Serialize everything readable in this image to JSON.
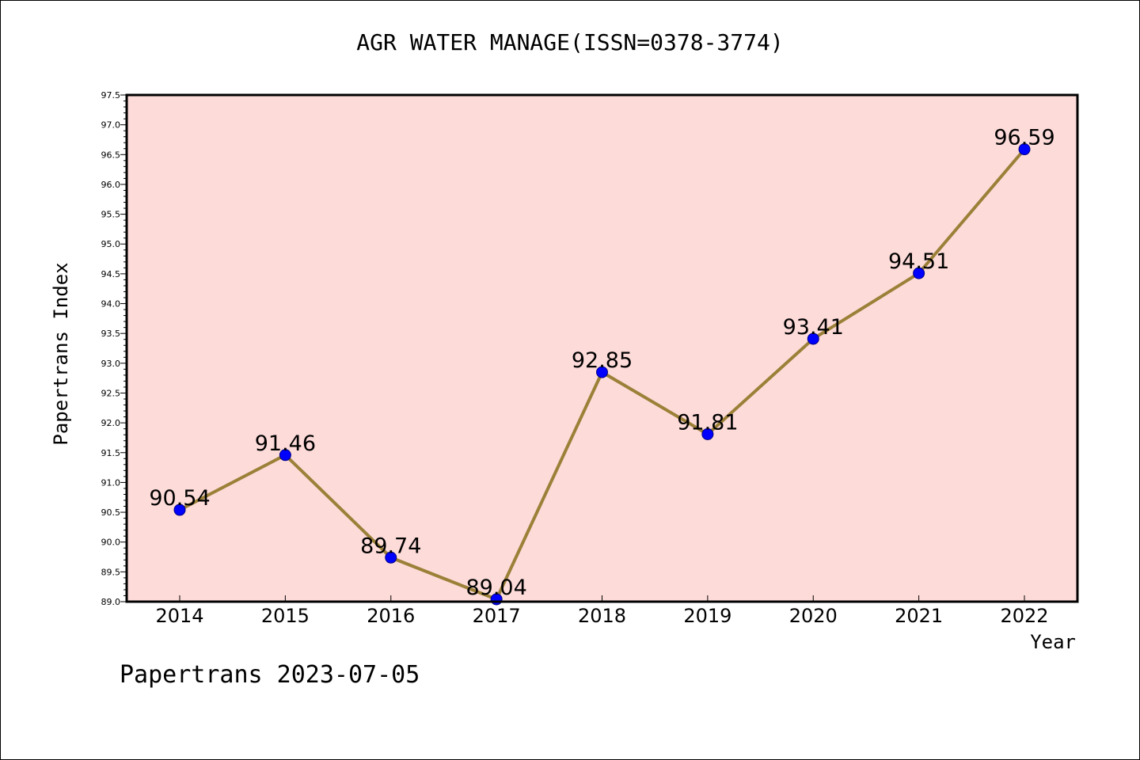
{
  "title": "AGR WATER MANAGE(ISSN=0378-3774)",
  "footer": "Papertrans 2023-07-05",
  "colors": {
    "plot_bg": "#fddbd9",
    "line": "#9b8038",
    "marker": "#0000ff",
    "axis": "#000000"
  },
  "chart_data": {
    "type": "line",
    "title": "AGR WATER MANAGE(ISSN=0378-3774)",
    "xlabel": "Year",
    "ylabel": "Papertrans Index",
    "categories": [
      "2014",
      "2015",
      "2016",
      "2017",
      "2018",
      "2019",
      "2020",
      "2021",
      "2022"
    ],
    "series": [
      {
        "values": [
          90.54,
          91.46,
          89.74,
          89.04,
          92.85,
          91.81,
          93.41,
          94.51,
          96.59
        ]
      }
    ],
    "data_labels": [
      "90.54",
      "91.46",
      "89.74",
      "89.04",
      "92.85",
      "91.81",
      "93.41",
      "94.51",
      "96.59"
    ],
    "ylim": [
      89.0,
      97.5
    ],
    "yticks": [
      "89.0",
      "89.5",
      "90.0",
      "90.5",
      "91.0",
      "91.5",
      "92.0",
      "92.5",
      "93.0",
      "93.5",
      "94.0",
      "94.5",
      "95.0",
      "95.5",
      "96.0",
      "96.5",
      "97.0",
      "97.5"
    ],
    "grid": false,
    "legend": "none"
  }
}
